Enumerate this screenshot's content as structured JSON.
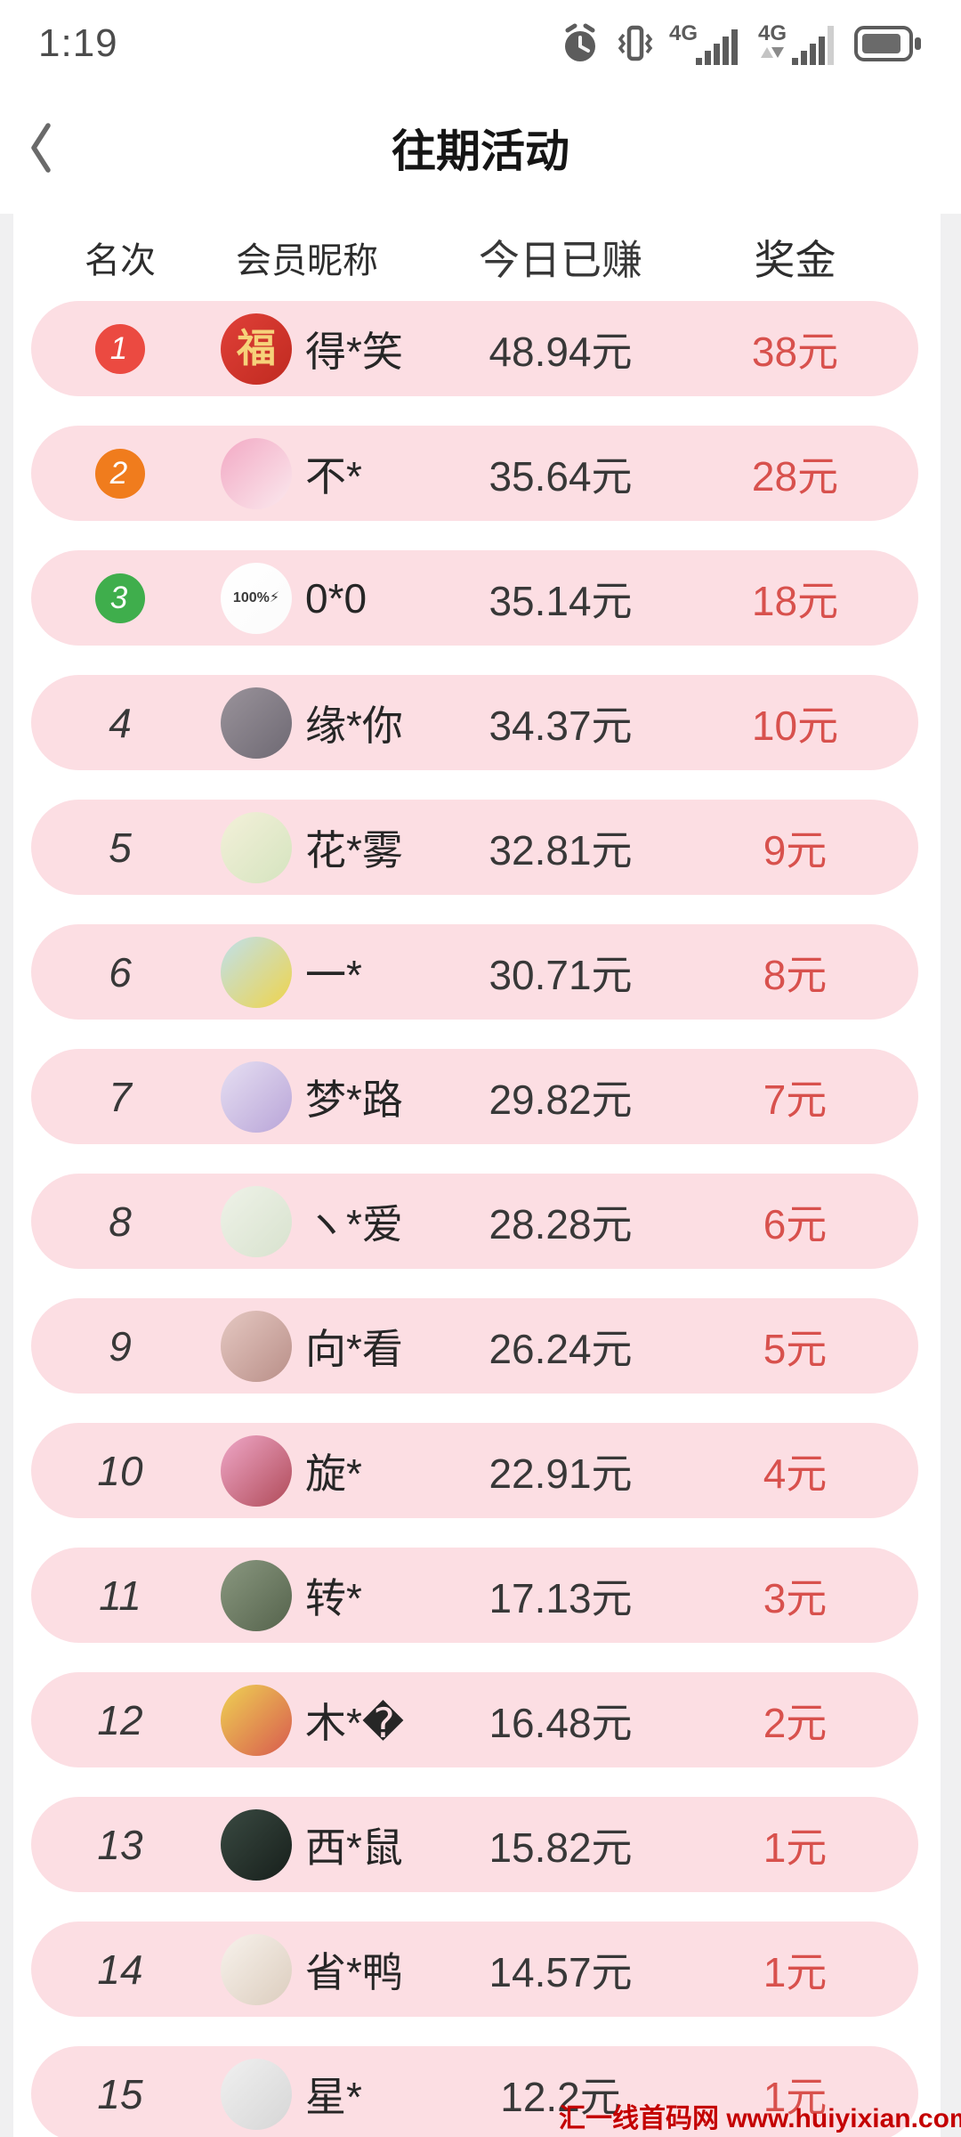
{
  "status_bar": {
    "time": "1:19",
    "icons": [
      "alarm-icon",
      "vibrate-icon",
      "signal-4g-icon",
      "signal-4g-secondary-icon",
      "battery-icon"
    ]
  },
  "header": {
    "title": "往期活动"
  },
  "table": {
    "columns": [
      "名次",
      "会员昵称",
      "今日已赚",
      "奖金"
    ]
  },
  "theme": {
    "pill_bg": "#FCDEE3",
    "prize_red": "#D8514D",
    "rank1": "#EB4A41",
    "rank2": "#F07C1D",
    "rank3": "#3FAE4C"
  },
  "rows": [
    {
      "rank": "1",
      "badge_color": "#EB4A41",
      "name": "得*笑",
      "earned": "48.94元",
      "prize": "38元",
      "avatar": {
        "label": "fu-charm-avatar",
        "colors": [
          "#E04038",
          "#C02A20"
        ],
        "glyph": "福",
        "glyph_color": "#F6D27A",
        "glyph_size": 44
      }
    },
    {
      "rank": "2",
      "badge_color": "#F07C1D",
      "name": "不*",
      "earned": "35.64元",
      "prize": "28元",
      "avatar": {
        "label": "anime-pink-hair-avatar",
        "colors": [
          "#F2A9C4",
          "#FBE9EE"
        ],
        "glyph": "",
        "glyph_color": "",
        "glyph_size": 0
      }
    },
    {
      "rank": "3",
      "badge_color": "#3FAE4C",
      "name": "0*0",
      "earned": "35.14元",
      "prize": "18元",
      "avatar": {
        "label": "battery-100-avatar",
        "colors": [
          "#FFFFFF",
          "#FBFBFB"
        ],
        "glyph": "100%⚡",
        "glyph_color": "#3A3A3A",
        "glyph_size": 16
      }
    },
    {
      "rank": "4",
      "badge_color": "",
      "name": "缘*你",
      "earned": "34.37元",
      "prize": "10元",
      "avatar": {
        "label": "pavement-photo-avatar",
        "colors": [
          "#9A939B",
          "#6E6973"
        ],
        "glyph": "",
        "glyph_color": "",
        "glyph_size": 0
      }
    },
    {
      "rank": "5",
      "badge_color": "",
      "name": "花*雾",
      "earned": "32.81元",
      "prize": "9元",
      "avatar": {
        "label": "daisy-field-avatar",
        "colors": [
          "#F3F0D9",
          "#D5E4BF"
        ],
        "glyph": "",
        "glyph_color": "",
        "glyph_size": 0
      }
    },
    {
      "rank": "6",
      "badge_color": "",
      "name": "一*",
      "earned": "30.71元",
      "prize": "8元",
      "avatar": {
        "label": "shinchan-raincoat-avatar",
        "colors": [
          "#BFE0EC",
          "#EFD44A"
        ],
        "glyph": "",
        "glyph_color": "",
        "glyph_size": 0
      }
    },
    {
      "rank": "7",
      "badge_color": "",
      "name": "梦*路",
      "earned": "29.82元",
      "prize": "7元",
      "avatar": {
        "label": "purple-anime-avatar",
        "colors": [
          "#E6DFF2",
          "#B9A5D8"
        ],
        "glyph": "",
        "glyph_color": "",
        "glyph_size": 0
      }
    },
    {
      "rank": "8",
      "badge_color": "",
      "name": "ヽ*爱",
      "earned": "28.28元",
      "prize": "6元",
      "avatar": {
        "label": "dandelion-avatar",
        "colors": [
          "#EEF2E8",
          "#D8E2CE"
        ],
        "glyph": "",
        "glyph_color": "",
        "glyph_size": 0
      }
    },
    {
      "rank": "9",
      "badge_color": "",
      "name": "向*看",
      "earned": "26.24元",
      "prize": "5元",
      "avatar": {
        "label": "two-babies-photo-avatar",
        "colors": [
          "#E5C8C2",
          "#B98F88"
        ],
        "glyph": "",
        "glyph_color": "",
        "glyph_size": 0
      }
    },
    {
      "rank": "10",
      "badge_color": "",
      "name": "旋*",
      "earned": "22.91元",
      "prize": "4元",
      "avatar": {
        "label": "samurai-sakura-avatar",
        "colors": [
          "#EFA8C8",
          "#B04A58"
        ],
        "glyph": "",
        "glyph_color": "",
        "glyph_size": 0
      }
    },
    {
      "rank": "11",
      "badge_color": "",
      "name": "转*",
      "earned": "17.13元",
      "prize": "3元",
      "avatar": {
        "label": "white-flower-avatar",
        "colors": [
          "#8A9880",
          "#55634C"
        ],
        "glyph": "",
        "glyph_color": "",
        "glyph_size": 0
      }
    },
    {
      "rank": "12",
      "badge_color": "",
      "name": "木*�",
      "earned": "16.48元",
      "prize": "2元",
      "avatar": {
        "label": "kid-yellow-hat-avatar",
        "colors": [
          "#EED254",
          "#D85A4E"
        ],
        "glyph": "",
        "glyph_color": "",
        "glyph_size": 0
      }
    },
    {
      "rank": "13",
      "badge_color": "",
      "name": "西*鼠",
      "earned": "15.82元",
      "prize": "1元",
      "avatar": {
        "label": "dark-hooded-anime-avatar",
        "colors": [
          "#3A4A42",
          "#171F1B"
        ],
        "glyph": "",
        "glyph_color": "",
        "glyph_size": 0
      }
    },
    {
      "rank": "14",
      "badge_color": "",
      "name": "省*鸭",
      "earned": "14.57元",
      "prize": "1元",
      "avatar": {
        "label": "cartoon-boy-glasses-avatar",
        "colors": [
          "#F7F2EC",
          "#DCCDBE"
        ],
        "glyph": "",
        "glyph_color": "",
        "glyph_size": 0
      }
    },
    {
      "rank": "15",
      "badge_color": "",
      "name": "星*",
      "earned": "12.2元",
      "prize": "1元",
      "avatar": {
        "label": "cartoon-man-sunglasses-avatar",
        "colors": [
          "#F0F0F0",
          "#D6D6D6"
        ],
        "glyph": "",
        "glyph_color": "",
        "glyph_size": 0
      }
    }
  ],
  "watermark": {
    "text": "汇一线首码网 www.huiyixian.com",
    "color": "#C40000"
  }
}
